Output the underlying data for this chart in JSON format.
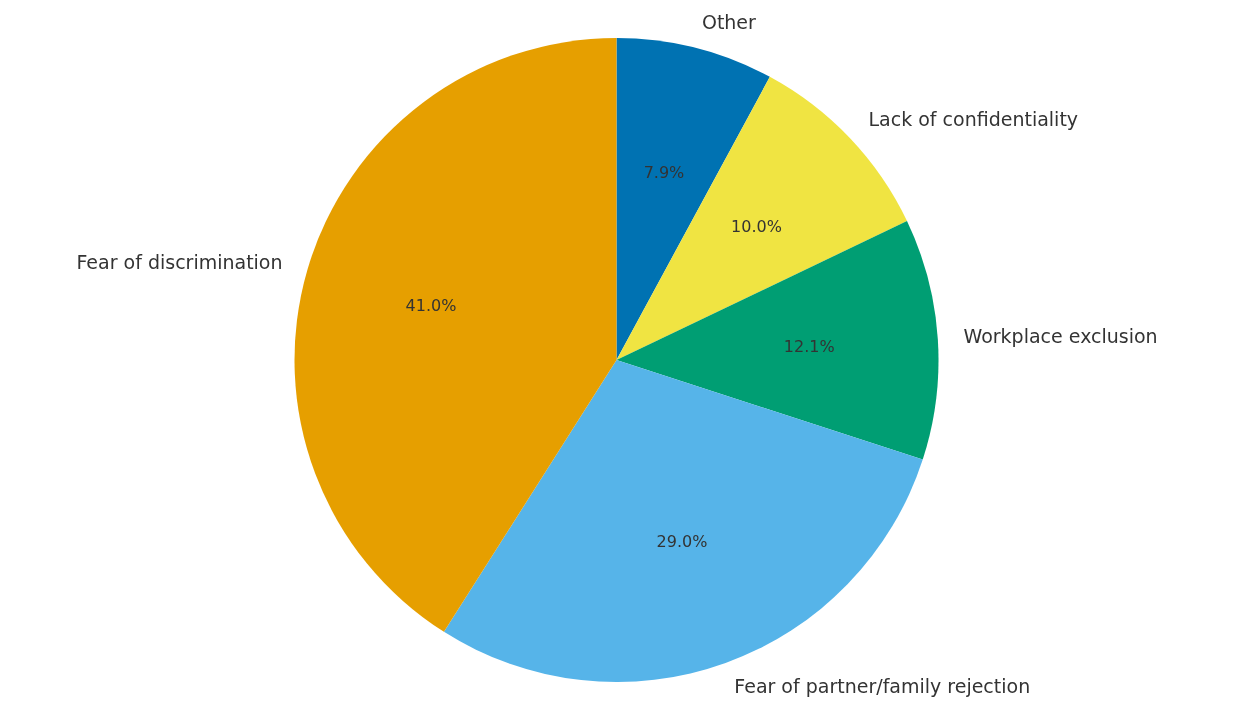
{
  "chart_data": {
    "type": "pie",
    "categories": [
      "Other",
      "Lack of confidentiality",
      "Workplace exclusion",
      "Fear of partner/family rejection",
      "Fear of discrimination"
    ],
    "values": [
      7.9,
      10.0,
      12.1,
      29.0,
      41.0
    ],
    "value_labels": [
      "7.9%",
      "10.0%",
      "12.1%",
      "29.0%",
      "41.0%"
    ],
    "colors": [
      "#0072b2",
      "#f0e442",
      "#009e73",
      "#56b4e9",
      "#e69f00"
    ],
    "legend": false
  }
}
